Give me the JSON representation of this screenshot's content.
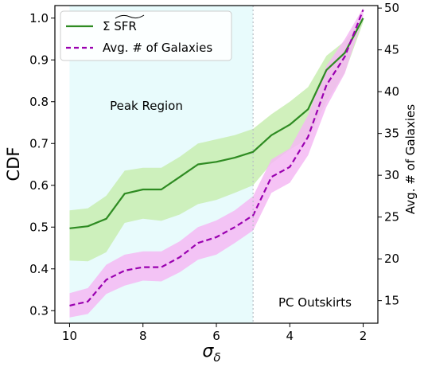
{
  "chart_data": {
    "type": "line",
    "xlabel": "σδ",
    "xlabel_main": "σ",
    "xlabel_sub": "δ",
    "ylabel_left": "CDF",
    "ylabel_right": "Avg. # of Galaxies",
    "x_reversed": true,
    "xlim": [
      10.4,
      1.6
    ],
    "ylim_left": [
      0.27,
      1.03
    ],
    "ylim_right": [
      12.3,
      50.3
    ],
    "xticks": [
      10,
      8,
      6,
      4,
      2
    ],
    "yticks_left": [
      0.3,
      0.4,
      0.5,
      0.6,
      0.7,
      0.8,
      0.9,
      1.0
    ],
    "yticks_right": [
      15,
      20,
      25,
      30,
      35,
      40,
      45,
      50
    ],
    "grid": false,
    "legend_position": "upper-left",
    "regions": [
      {
        "label": "Peak Region",
        "x_from": 10,
        "x_to": 5,
        "color": "#e8fbfc",
        "label_color": "#3e86c4"
      }
    ],
    "vline": {
      "x": 5,
      "color": "#b7bec4"
    },
    "annotations": [
      {
        "text": "PC Outskirts"
      }
    ],
    "x": [
      10,
      9.5,
      9,
      8.5,
      8,
      7.5,
      7,
      6.5,
      6,
      5.5,
      5,
      4.5,
      4,
      3.5,
      3,
      2.5,
      2
    ],
    "series": [
      {
        "name": "Σ SFR",
        "axis": "left",
        "color": "#2e8b22",
        "band_color": "#c8edb0",
        "dashed": false,
        "values": [
          0.497,
          0.502,
          0.52,
          0.58,
          0.59,
          0.59,
          0.62,
          0.65,
          0.656,
          0.666,
          0.68,
          0.72,
          0.745,
          0.782,
          0.876,
          0.917,
          1.0
        ],
        "lower": [
          0.42,
          0.418,
          0.44,
          0.51,
          0.52,
          0.515,
          0.53,
          0.555,
          0.565,
          0.582,
          0.6,
          0.652,
          0.685,
          0.712,
          0.8,
          0.87,
          0.99
        ],
        "upper": [
          0.54,
          0.545,
          0.575,
          0.635,
          0.642,
          0.642,
          0.668,
          0.7,
          0.71,
          0.72,
          0.735,
          0.77,
          0.8,
          0.835,
          0.91,
          0.945,
          1.0
        ]
      },
      {
        "name": "Avg. # of Galaxies",
        "axis": "right",
        "color": "#9a00b0",
        "band_color": "#f5b8f3",
        "dashed": true,
        "values": [
          14.4,
          14.9,
          17.5,
          18.6,
          19.0,
          19.0,
          20.2,
          21.9,
          22.6,
          23.8,
          25.2,
          29.8,
          31.0,
          34.6,
          40.8,
          44.2,
          49.8
        ],
        "lower": [
          13.0,
          13.4,
          15.8,
          16.8,
          17.4,
          17.3,
          18.4,
          19.9,
          20.5,
          21.9,
          23.4,
          27.9,
          29.1,
          32.4,
          38.2,
          42.2,
          49.0
        ],
        "upper": [
          15.9,
          16.5,
          19.3,
          20.5,
          20.9,
          20.9,
          22.1,
          23.8,
          24.6,
          25.8,
          27.5,
          31.9,
          33.2,
          37.2,
          43.1,
          46.3,
          50.0
        ]
      }
    ]
  }
}
